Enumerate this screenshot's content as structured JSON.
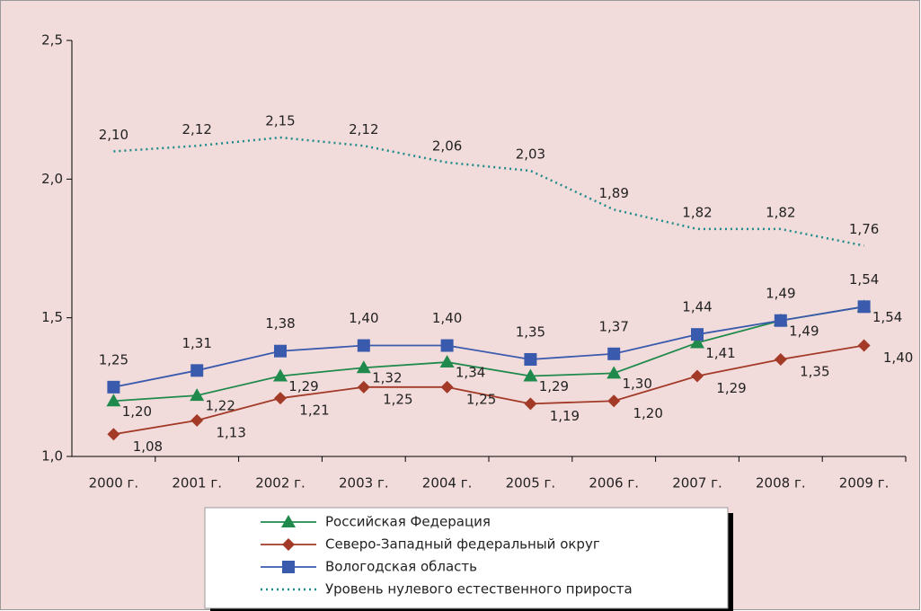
{
  "chart_data": {
    "type": "line",
    "categories": [
      "2000 г.",
      "2001 г.",
      "2002 г.",
      "2003 г.",
      "2004 г.",
      "2005 г.",
      "2006 г.",
      "2007 г.",
      "2008 г.",
      "2009 г."
    ],
    "ylim": [
      1.0,
      2.5
    ],
    "yticks": [
      {
        "value": 1.0,
        "label": "1,0"
      },
      {
        "value": 1.5,
        "label": "1,5"
      },
      {
        "value": 2.0,
        "label": "2,0"
      },
      {
        "value": 2.5,
        "label": "2,5"
      }
    ],
    "series": [
      {
        "name": "Российская Федерация",
        "color": "#1f8a4c",
        "marker": "triangle",
        "dash": "solid",
        "values": [
          1.2,
          1.22,
          1.29,
          1.32,
          1.34,
          1.29,
          1.3,
          1.41,
          1.49,
          1.54
        ],
        "value_labels": [
          "1,20",
          "1,22",
          "1,29",
          "1,32",
          "1,34",
          "1,29",
          "1,30",
          "1,41",
          "1,49",
          "1,54"
        ]
      },
      {
        "name": "Северо-Западный федеральный округ",
        "color": "#a33a28",
        "marker": "diamond",
        "dash": "solid",
        "values": [
          1.08,
          1.13,
          1.21,
          1.25,
          1.25,
          1.19,
          1.2,
          1.29,
          1.35,
          1.4
        ],
        "value_labels": [
          "1,08",
          "1,13",
          "1,21",
          "1,25",
          "1,25",
          "1,19",
          "1,20",
          "1,29",
          "1,35",
          "1,40"
        ]
      },
      {
        "name": "Вологодская область",
        "color": "#3a5aae",
        "marker": "square",
        "dash": "solid",
        "values": [
          1.25,
          1.31,
          1.38,
          1.4,
          1.4,
          1.35,
          1.37,
          1.44,
          1.49,
          1.54
        ],
        "value_labels": [
          "1,25",
          "1,31",
          "1,38",
          "1,40",
          "1,40",
          "1,35",
          "1,37",
          "1,44",
          "1,49",
          "1,54"
        ]
      },
      {
        "name": "Уровень нулевого естественного прироста",
        "color": "#1f8c8a",
        "marker": "none",
        "dash": "dotted",
        "values": [
          2.1,
          2.12,
          2.15,
          2.12,
          2.06,
          2.03,
          1.89,
          1.82,
          1.82,
          1.76
        ],
        "value_labels": [
          "2,10",
          "2,12",
          "2,15",
          "2,12",
          "2,06",
          "2,03",
          "1,89",
          "1,82",
          "1,82",
          "1,76"
        ]
      }
    ]
  }
}
